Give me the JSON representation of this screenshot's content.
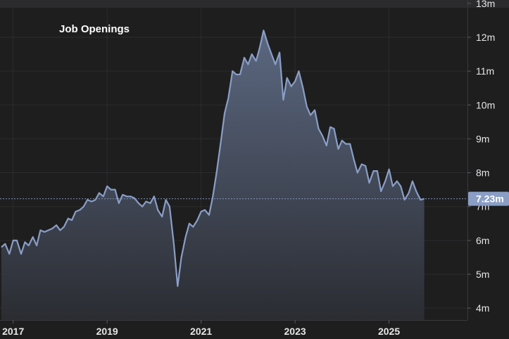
{
  "chart_data": {
    "type": "area",
    "title": "Job Openings",
    "x_unit": "year",
    "xlim": [
      2016.72,
      2026.67
    ],
    "ylim": [
      3.65,
      13.1
    ],
    "x_ticks": [
      {
        "value": 2017,
        "label": "2017"
      },
      {
        "value": 2019,
        "label": "2019"
      },
      {
        "value": 2021,
        "label": "2021"
      },
      {
        "value": 2023,
        "label": "2023"
      },
      {
        "value": 2025,
        "label": "2025"
      }
    ],
    "y_ticks": [
      {
        "value": 4,
        "label": "4m"
      },
      {
        "value": 5,
        "label": "5m"
      },
      {
        "value": 6,
        "label": "6m"
      },
      {
        "value": 7,
        "label": "7m"
      },
      {
        "value": 8,
        "label": "8m"
      },
      {
        "value": 9,
        "label": "9m"
      },
      {
        "value": 10,
        "label": "10m"
      },
      {
        "value": 11,
        "label": "11m"
      },
      {
        "value": 12,
        "label": "12m"
      },
      {
        "value": 13,
        "label": "13m"
      }
    ],
    "grid": true,
    "last_value": 7.23,
    "last_value_label": "7.23m",
    "colors": {
      "background": "#1e1e1f",
      "grid": "#2c2c2e",
      "line": "#8a9ec6",
      "area_top": "#5f6c86",
      "area_bottom": "#2b2d33",
      "badge": "#8a9ec6"
    },
    "series": [
      {
        "points": [
          [
            2016.75,
            5.8
          ],
          [
            2016.83,
            5.9
          ],
          [
            2016.92,
            5.6
          ],
          [
            2017.0,
            6.0
          ],
          [
            2017.08,
            6.0
          ],
          [
            2017.17,
            5.6
          ],
          [
            2017.25,
            5.95
          ],
          [
            2017.33,
            5.85
          ],
          [
            2017.42,
            6.1
          ],
          [
            2017.5,
            5.85
          ],
          [
            2017.58,
            6.3
          ],
          [
            2017.67,
            6.25
          ],
          [
            2017.75,
            6.3
          ],
          [
            2017.83,
            6.35
          ],
          [
            2017.92,
            6.45
          ],
          [
            2018.0,
            6.3
          ],
          [
            2018.08,
            6.4
          ],
          [
            2018.17,
            6.65
          ],
          [
            2018.25,
            6.6
          ],
          [
            2018.33,
            6.85
          ],
          [
            2018.42,
            6.9
          ],
          [
            2018.5,
            7.0
          ],
          [
            2018.58,
            7.2
          ],
          [
            2018.67,
            7.15
          ],
          [
            2018.75,
            7.2
          ],
          [
            2018.83,
            7.4
          ],
          [
            2018.92,
            7.3
          ],
          [
            2019.0,
            7.6
          ],
          [
            2019.08,
            7.5
          ],
          [
            2019.17,
            7.5
          ],
          [
            2019.25,
            7.1
          ],
          [
            2019.33,
            7.35
          ],
          [
            2019.42,
            7.3
          ],
          [
            2019.5,
            7.3
          ],
          [
            2019.58,
            7.25
          ],
          [
            2019.67,
            7.1
          ],
          [
            2019.75,
            7.0
          ],
          [
            2019.83,
            7.15
          ],
          [
            2019.92,
            7.1
          ],
          [
            2020.0,
            7.3
          ],
          [
            2020.08,
            6.9
          ],
          [
            2020.17,
            6.7
          ],
          [
            2020.25,
            7.2
          ],
          [
            2020.33,
            7.0
          ],
          [
            2020.42,
            5.9
          ],
          [
            2020.5,
            4.65
          ],
          [
            2020.58,
            5.5
          ],
          [
            2020.67,
            6.1
          ],
          [
            2020.75,
            6.5
          ],
          [
            2020.83,
            6.4
          ],
          [
            2020.92,
            6.6
          ],
          [
            2021.0,
            6.85
          ],
          [
            2021.08,
            6.9
          ],
          [
            2021.17,
            6.75
          ],
          [
            2021.25,
            7.3
          ],
          [
            2021.33,
            8.0
          ],
          [
            2021.42,
            8.9
          ],
          [
            2021.5,
            9.75
          ],
          [
            2021.58,
            10.2
          ],
          [
            2021.67,
            11.0
          ],
          [
            2021.75,
            10.9
          ],
          [
            2021.83,
            10.9
          ],
          [
            2021.92,
            11.4
          ],
          [
            2022.0,
            11.2
          ],
          [
            2022.08,
            11.5
          ],
          [
            2022.17,
            11.3
          ],
          [
            2022.25,
            11.7
          ],
          [
            2022.33,
            12.2
          ],
          [
            2022.42,
            11.8
          ],
          [
            2022.5,
            11.5
          ],
          [
            2022.58,
            11.2
          ],
          [
            2022.67,
            11.55
          ],
          [
            2022.75,
            10.15
          ],
          [
            2022.83,
            10.8
          ],
          [
            2022.92,
            10.55
          ],
          [
            2023.0,
            10.7
          ],
          [
            2023.08,
            11.0
          ],
          [
            2023.17,
            10.5
          ],
          [
            2023.25,
            9.95
          ],
          [
            2023.33,
            9.7
          ],
          [
            2023.42,
            9.85
          ],
          [
            2023.5,
            9.3
          ],
          [
            2023.58,
            9.1
          ],
          [
            2023.67,
            8.8
          ],
          [
            2023.75,
            9.35
          ],
          [
            2023.83,
            9.3
          ],
          [
            2023.92,
            8.7
          ],
          [
            2024.0,
            8.95
          ],
          [
            2024.08,
            8.85
          ],
          [
            2024.17,
            8.85
          ],
          [
            2024.25,
            8.4
          ],
          [
            2024.33,
            8.0
          ],
          [
            2024.42,
            8.25
          ],
          [
            2024.5,
            8.2
          ],
          [
            2024.58,
            7.7
          ],
          [
            2024.67,
            8.05
          ],
          [
            2024.75,
            8.05
          ],
          [
            2024.83,
            7.45
          ],
          [
            2024.92,
            7.75
          ],
          [
            2025.0,
            8.1
          ],
          [
            2025.08,
            7.6
          ],
          [
            2025.17,
            7.75
          ],
          [
            2025.25,
            7.6
          ],
          [
            2025.33,
            7.2
          ],
          [
            2025.42,
            7.4
          ],
          [
            2025.5,
            7.75
          ],
          [
            2025.58,
            7.45
          ],
          [
            2025.67,
            7.2
          ],
          [
            2025.75,
            7.23
          ]
        ]
      }
    ]
  }
}
